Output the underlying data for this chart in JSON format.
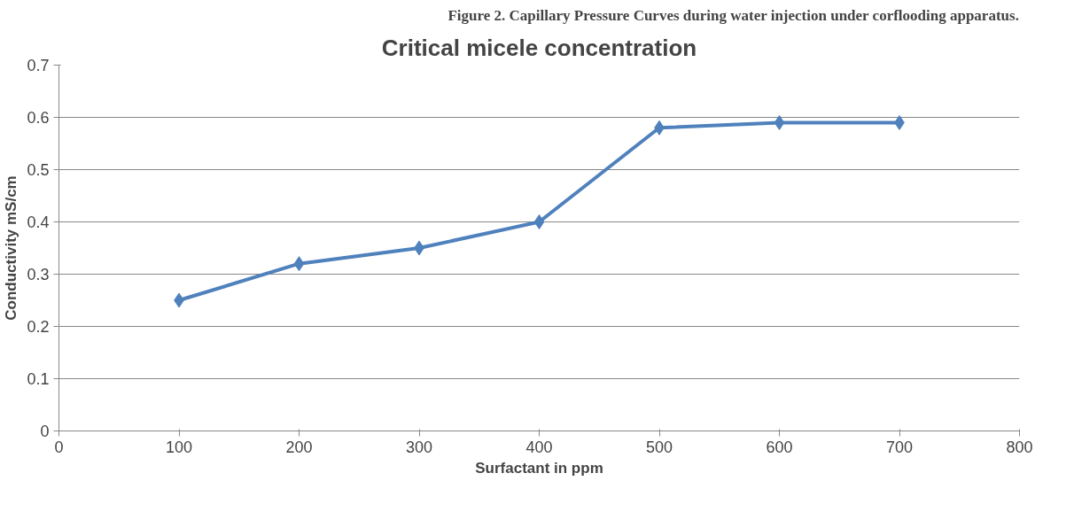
{
  "chart_data": {
    "type": "line",
    "title": "Critical micele concentration",
    "xlabel": "Surfactant in ppm",
    "ylabel": "Conductivity mS/cm",
    "annotations": [
      "Figure 2. Capillary Pressure Curves during water injection under corflooding apparatus."
    ],
    "x": [
      100,
      200,
      300,
      400,
      500,
      600,
      700
    ],
    "series": [
      {
        "color": "#4f81bd",
        "values": [
          0.25,
          0.32,
          0.35,
          0.4,
          0.58,
          0.59,
          0.59
        ]
      }
    ],
    "xlim": [
      0,
      800
    ],
    "xticks": [
      0,
      100,
      200,
      300,
      400,
      500,
      600,
      700,
      800
    ],
    "ylim": [
      0,
      0.7
    ],
    "yticks": [
      0,
      0.1,
      0.2,
      0.3,
      0.4,
      0.5,
      0.6,
      0.7
    ],
    "grid": "y",
    "marker": "diamond"
  }
}
